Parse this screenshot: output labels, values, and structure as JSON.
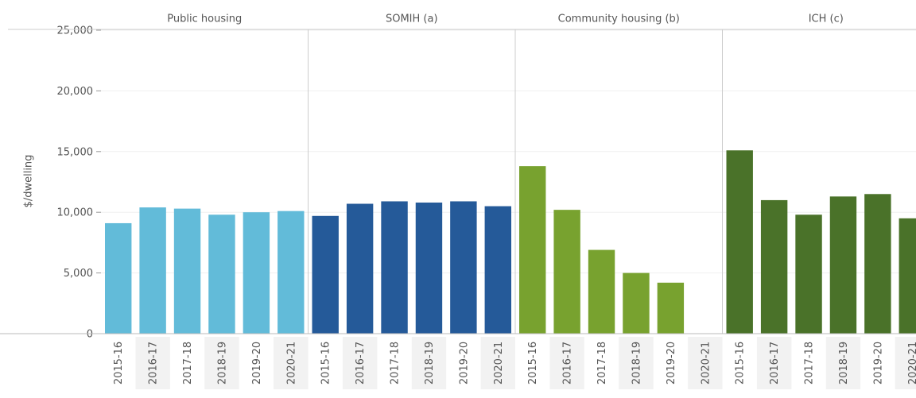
{
  "chart_data": {
    "type": "bar",
    "y_label": "$/dwelling",
    "categories": [
      "2015-16",
      "2016-17",
      "2017-18",
      "2018-19",
      "2019-20",
      "2020-21"
    ],
    "series": [
      {
        "name": "Public housing",
        "color": "#62bbd9",
        "values": [
          9100,
          10400,
          10300,
          9800,
          10000,
          10100
        ]
      },
      {
        "name": "SOMIH (a)",
        "color": "#255a99",
        "values": [
          9700,
          10700,
          10900,
          10800,
          10900,
          10500
        ]
      },
      {
        "name": "Community housing (b)",
        "color": "#78a22f",
        "values": [
          13800,
          10200,
          6900,
          5000,
          4200,
          null
        ]
      },
      {
        "name": "ICH (c)",
        "color": "#4a7229",
        "values": [
          15100,
          11000,
          9800,
          11300,
          11500,
          9500
        ]
      }
    ],
    "ylim": [
      0,
      25000
    ],
    "yticks": [
      0,
      {
        "value": 5000,
        "label": "5,000"
      },
      {
        "value": 10000,
        "label": "10,000"
      },
      {
        "value": 15000,
        "label": "15,000"
      },
      {
        "value": 20000,
        "label": "20,000"
      },
      {
        "value": 25000,
        "label": "25,000"
      }
    ],
    "grid": true
  }
}
